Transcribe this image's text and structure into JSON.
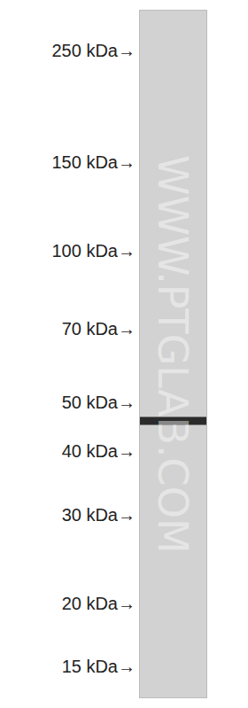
{
  "chart_data": {
    "type": "blot",
    "values": [
      46
    ],
    "color": "#2b2b2b",
    "ylim": [
      13,
      300
    ],
    "log": "y",
    "grid": false,
    "yticks": [
      {
        "value": 250,
        "label": "250 kDa→"
      },
      {
        "value": 150,
        "label": "150 kDa→"
      },
      {
        "value": 100,
        "label": "100 kDa→"
      },
      {
        "value": 70,
        "label": "70 kDa→"
      },
      {
        "value": 50,
        "label": "50 kDa→"
      },
      {
        "value": 40,
        "label": "40 kDa→"
      },
      {
        "value": 30,
        "label": "30 kDa→"
      },
      {
        "value": 20,
        "label": "20 kDa→"
      },
      {
        "value": 15,
        "label": "15 kDa→"
      }
    ],
    "annotations": [
      "WWW.PTGLAB.COM"
    ]
  }
}
